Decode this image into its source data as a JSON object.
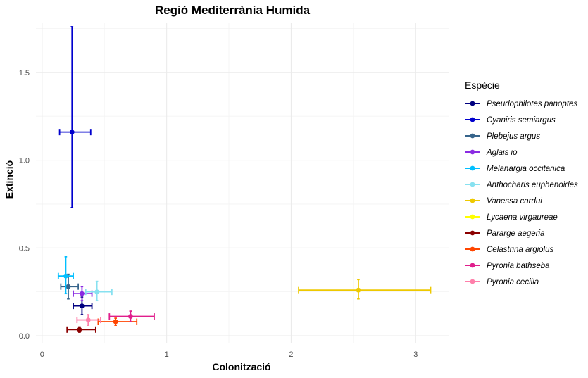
{
  "chart_data": {
    "type": "scatter",
    "title": "Regió Mediterrània Humida",
    "xlabel": "Colonització",
    "ylabel": "Extinció",
    "xlim": [
      -0.05,
      3.27
    ],
    "ylim": [
      -0.04,
      1.78
    ],
    "x_ticks": [
      0,
      1,
      2,
      3
    ],
    "x_tick_labels": [
      "0",
      "1",
      "2",
      "3"
    ],
    "y_ticks": [
      0.0,
      0.5,
      1.0,
      1.5
    ],
    "y_tick_labels": [
      "0.0",
      "0.5",
      "1.0",
      "1.5"
    ],
    "grid": true,
    "legend_title": "Espècie",
    "legend_position": "right",
    "series": [
      {
        "name": "Pseudophilotes panoptes",
        "color": "#000080",
        "x": 0.32,
        "y": 0.17,
        "xmin": 0.25,
        "xmax": 0.4,
        "ymin": 0.12,
        "ymax": 0.22
      },
      {
        "name": "Cyaniris semiargus",
        "color": "#0000CD",
        "x": 0.24,
        "y": 1.16,
        "xmin": 0.14,
        "xmax": 0.39,
        "ymin": 0.73,
        "ymax": 1.76
      },
      {
        "name": "Plebejus argus",
        "color": "#36648B",
        "x": 0.21,
        "y": 0.28,
        "xmin": 0.15,
        "xmax": 0.29,
        "ymin": 0.21,
        "ymax": 0.35
      },
      {
        "name": "Aglais io",
        "color": "#8A2BE2",
        "x": 0.32,
        "y": 0.24,
        "xmin": 0.25,
        "xmax": 0.4,
        "ymin": 0.2,
        "ymax": 0.28
      },
      {
        "name": "Melanargia occitanica",
        "color": "#00BFFF",
        "x": 0.19,
        "y": 0.34,
        "xmin": 0.13,
        "xmax": 0.25,
        "ymin": 0.24,
        "ymax": 0.45
      },
      {
        "name": "Anthocharis euphenoides",
        "color": "#87E1F0",
        "x": 0.44,
        "y": 0.25,
        "xmin": 0.35,
        "xmax": 0.56,
        "ymin": 0.2,
        "ymax": 0.31
      },
      {
        "name": "Vanessa cardui",
        "color": "#EEC900",
        "x": 2.54,
        "y": 0.26,
        "xmin": 2.06,
        "xmax": 3.12,
        "ymin": 0.21,
        "ymax": 0.32
      },
      {
        "name": "Lycaena virgaureae",
        "color": "#FFFF00",
        "x": 0.0,
        "y": 0.0,
        "xmin": 0.0,
        "xmax": 0.0,
        "ymin": 0.0,
        "ymax": 0.0,
        "hidden": true
      },
      {
        "name": "Pararge aegeria",
        "color": "#8B0000",
        "x": 0.3,
        "y": 0.035,
        "xmin": 0.2,
        "xmax": 0.43,
        "ymin": 0.02,
        "ymax": 0.05
      },
      {
        "name": "Celastrina argiolus",
        "color": "#FF4500",
        "x": 0.59,
        "y": 0.08,
        "xmin": 0.45,
        "xmax": 0.76,
        "ymin": 0.06,
        "ymax": 0.1
      },
      {
        "name": "Pyronia bathseba",
        "color": "#E01E8C",
        "x": 0.71,
        "y": 0.11,
        "xmin": 0.54,
        "xmax": 0.9,
        "ymin": 0.08,
        "ymax": 0.14
      },
      {
        "name": "Pyronia cecilia",
        "color": "#FF7FAA",
        "x": 0.37,
        "y": 0.09,
        "xmin": 0.28,
        "xmax": 0.47,
        "ymin": 0.06,
        "ymax": 0.12
      }
    ]
  }
}
